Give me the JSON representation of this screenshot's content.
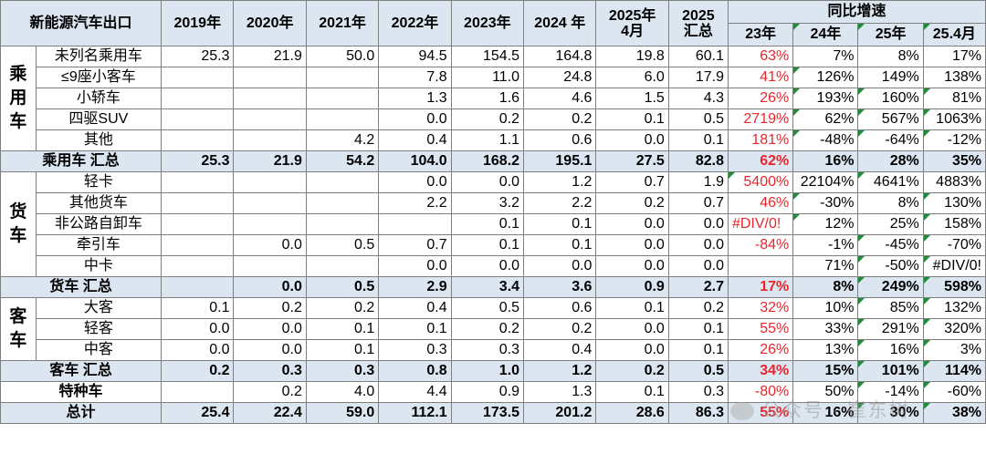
{
  "header": {
    "corner": "新能源汽车出口",
    "years": [
      "2019年",
      "2020年",
      "2021年",
      "2022年",
      "2023年",
      "2024 年"
    ],
    "month_top": "2025年",
    "month_bottom": "4月",
    "total_top": "2025",
    "total_bottom": "汇总",
    "growth_title": "同比增速",
    "growth_cols": [
      "23年",
      "24年",
      "25年",
      "25.4月"
    ]
  },
  "groups": {
    "passenger": "乘用车",
    "truck": "货车",
    "bus": "客车"
  },
  "rows": [
    {
      "label": "未列名乘用车",
      "v": [
        "25.3",
        "21.9",
        "50.0",
        "94.5",
        "154.5",
        "164.8",
        "19.8",
        "60.1"
      ],
      "g": [
        "63%",
        "7%",
        "8%",
        "17%"
      ]
    },
    {
      "label": "≤9座小客车",
      "v": [
        "",
        "",
        "",
        "7.8",
        "11.0",
        "24.8",
        "6.0",
        "17.9"
      ],
      "g": [
        "41%",
        "126%",
        "149%",
        "138%"
      ]
    },
    {
      "label": "小轿车",
      "v": [
        "",
        "",
        "",
        "1.3",
        "1.6",
        "4.6",
        "1.5",
        "4.3"
      ],
      "g": [
        "26%",
        "193%",
        "160%",
        "81%"
      ]
    },
    {
      "label": "四驱SUV",
      "v": [
        "",
        "",
        "",
        "0.0",
        "0.2",
        "0.2",
        "0.1",
        "0.5"
      ],
      "g": [
        "2719%",
        "62%",
        "567%",
        "1063%"
      ]
    },
    {
      "label": "其他",
      "v": [
        "",
        "",
        "4.2",
        "0.4",
        "1.1",
        "0.6",
        "0.0",
        "0.1"
      ],
      "g": [
        "181%",
        "-48%",
        "-64%",
        "-12%"
      ]
    },
    {
      "label": "乘用车 汇总",
      "v": [
        "25.3",
        "21.9",
        "54.2",
        "104.0",
        "168.2",
        "195.1",
        "27.5",
        "82.8"
      ],
      "g": [
        "62%",
        "16%",
        "28%",
        "35%"
      ]
    },
    {
      "label": "轻卡",
      "v": [
        "",
        "",
        "",
        "0.0",
        "0.0",
        "1.2",
        "0.7",
        "1.9"
      ],
      "g": [
        "5400%",
        "22104%",
        "4641%",
        "4883%"
      ]
    },
    {
      "label": "其他货车",
      "v": [
        "",
        "",
        "",
        "2.2",
        "3.2",
        "2.2",
        "0.2",
        "0.7"
      ],
      "g": [
        "46%",
        "-30%",
        "8%",
        "130%"
      ]
    },
    {
      "label": "非公路自卸车",
      "v": [
        "",
        "",
        "",
        "",
        "0.1",
        "0.1",
        "0.0",
        "0.0"
      ],
      "g": [
        "#DIV/0!",
        "12%",
        "25%",
        "158%"
      ]
    },
    {
      "label": "牵引车",
      "v": [
        "",
        "0.0",
        "0.5",
        "0.7",
        "0.1",
        "0.1",
        "0.0",
        "0.0"
      ],
      "g": [
        "-84%",
        "-1%",
        "-45%",
        "-70%"
      ]
    },
    {
      "label": "中卡",
      "v": [
        "",
        "",
        "",
        "0.0",
        "0.0",
        "0.0",
        "0.0",
        "0.0"
      ],
      "g": [
        "",
        "71%",
        "-50%",
        "#DIV/0!"
      ]
    },
    {
      "label": "货车 汇总",
      "v": [
        "",
        "0.0",
        "0.5",
        "2.9",
        "3.4",
        "3.6",
        "0.9",
        "2.7"
      ],
      "g": [
        "17%",
        "8%",
        "249%",
        "598%"
      ]
    },
    {
      "label": "大客",
      "v": [
        "0.1",
        "0.2",
        "0.2",
        "0.4",
        "0.5",
        "0.6",
        "0.1",
        "0.2"
      ],
      "g": [
        "32%",
        "10%",
        "85%",
        "132%"
      ]
    },
    {
      "label": "轻客",
      "v": [
        "0.0",
        "0.0",
        "0.1",
        "0.1",
        "0.2",
        "0.2",
        "0.0",
        "0.1"
      ],
      "g": [
        "55%",
        "33%",
        "291%",
        "320%"
      ]
    },
    {
      "label": "中客",
      "v": [
        "0.0",
        "0.0",
        "0.1",
        "0.3",
        "0.3",
        "0.4",
        "0.0",
        "0.1"
      ],
      "g": [
        "26%",
        "13%",
        "16%",
        "3%"
      ]
    },
    {
      "label": "客车 汇总",
      "v": [
        "0.2",
        "0.3",
        "0.3",
        "0.8",
        "1.0",
        "1.2",
        "0.2",
        "0.5"
      ],
      "g": [
        "34%",
        "15%",
        "101%",
        "114%"
      ]
    },
    {
      "label": "特种车",
      "v": [
        "",
        "0.2",
        "4.0",
        "4.4",
        "0.9",
        "1.3",
        "0.1",
        "0.3"
      ],
      "g": [
        "-80%",
        "50%",
        "-14%",
        "-60%"
      ]
    },
    {
      "label": "总计",
      "v": [
        "25.4",
        "22.4",
        "59.0",
        "112.1",
        "173.5",
        "201.2",
        "28.6",
        "86.3"
      ],
      "g": [
        "55%",
        "16%",
        "30%",
        "38%"
      ]
    }
  ],
  "watermark": "公众号 · 崔东树",
  "colors": {
    "header_bg": "#dce6f1",
    "red": "#e8262d",
    "border": "#7f7f7f"
  }
}
